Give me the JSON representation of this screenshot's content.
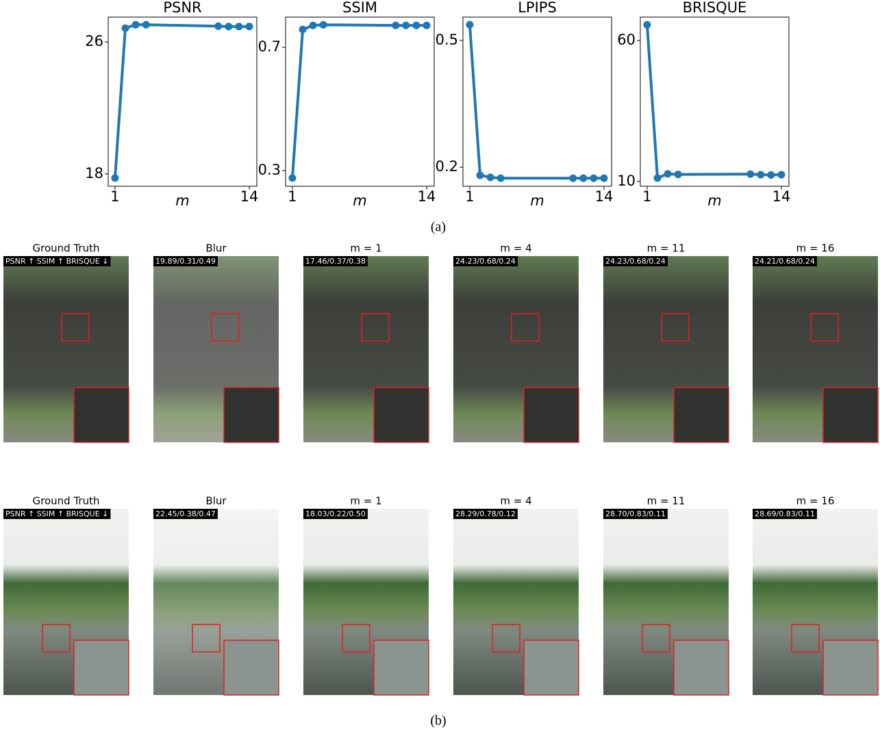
{
  "chart_data": [
    {
      "type": "line",
      "title": "PSNR",
      "xlabel": "m",
      "color": "#1f77b4",
      "x": [
        1,
        2,
        3,
        4,
        11,
        12,
        13,
        14
      ],
      "values": [
        17.75,
        26.83,
        27.04,
        27.04,
        26.95,
        26.93,
        26.93,
        26.93
      ],
      "xlim": [
        0.34,
        14.73
      ],
      "ylim": [
        17.25,
        27.5
      ],
      "xticks": [
        1,
        14
      ],
      "yticks": [
        18,
        26
      ]
    },
    {
      "type": "line",
      "title": "SSIM",
      "xlabel": "m",
      "color": "#1f77b4",
      "x": [
        1,
        2,
        3,
        4,
        11,
        12,
        13,
        14
      ],
      "values": [
        0.276,
        0.758,
        0.771,
        0.773,
        0.771,
        0.771,
        0.771,
        0.771
      ],
      "xlim": [
        0.34,
        14.73
      ],
      "ylim": [
        0.249,
        0.798
      ],
      "xticks": [
        1,
        14
      ],
      "yticks": [
        0.3,
        0.7
      ]
    },
    {
      "type": "line",
      "title": "LPIPS",
      "xlabel": "m",
      "color": "#1f77b4",
      "x": [
        1,
        2,
        3,
        4,
        11,
        12,
        13,
        14
      ],
      "values": [
        0.537,
        0.181,
        0.176,
        0.174,
        0.174,
        0.174,
        0.174,
        0.174
      ],
      "xlim": [
        0.34,
        14.73
      ],
      "ylim": [
        0.155,
        0.555
      ],
      "xticks": [
        1,
        14
      ],
      "yticks": [
        0.2,
        0.5
      ]
    },
    {
      "type": "line",
      "title": "BRISQUE",
      "xlabel": "m",
      "color": "#1f77b4",
      "x": [
        1,
        2,
        3,
        4,
        11,
        12,
        13,
        14
      ],
      "values": [
        65.6,
        11.2,
        12.7,
        12.5,
        12.6,
        12.4,
        12.3,
        12.4
      ],
      "xlim": [
        0.34,
        14.73
      ],
      "ylim": [
        8.3,
        68.3
      ],
      "xticks": [
        1,
        14
      ],
      "yticks": [
        10,
        60
      ]
    }
  ],
  "caption_a": "(a)",
  "image_grid": {
    "rows": [
      {
        "panels": [
          {
            "title": "Ground Truth",
            "metrics": "PSNR ↑ SSIM ↑ BRISQUE ↓"
          },
          {
            "title": "Blur",
            "metrics": "19.89/0.31/0.49"
          },
          {
            "title": "m =  1",
            "metrics": "17.46/0.37/0.38"
          },
          {
            "title": "m =  4",
            "metrics": "24.23/0.68/0.24"
          },
          {
            "title": "m =  11",
            "metrics": "24.23/0.68/0.24"
          },
          {
            "title": "m =  16",
            "metrics": "24.21/0.68/0.24"
          }
        ]
      },
      {
        "panels": [
          {
            "title": "Ground Truth",
            "metrics": "PSNR ↑ SSIM ↑ BRISQUE ↓"
          },
          {
            "title": "Blur",
            "metrics": "22.45/0.38/0.47"
          },
          {
            "title": "m =  1",
            "metrics": "18.03/0.22/0.50"
          },
          {
            "title": "m =  4",
            "metrics": "28.29/0.78/0.12"
          },
          {
            "title": "m =  11",
            "metrics": "28.70/0.83/0.11"
          },
          {
            "title": "m =  16",
            "metrics": "28.69/0.83/0.11"
          }
        ]
      }
    ]
  },
  "caption_b": "(b)"
}
